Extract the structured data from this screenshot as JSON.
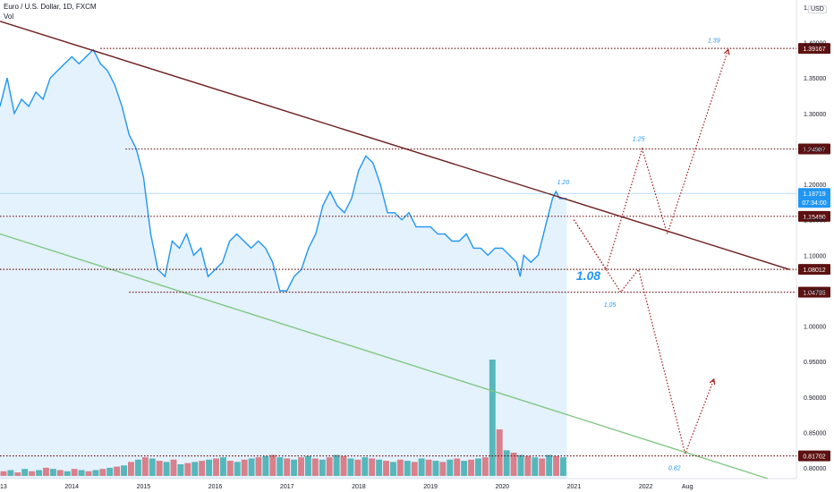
{
  "header": {
    "symbol": "Euro / U.S. Dollar, 1D, FXCM",
    "volume_label": "Vol",
    "currency": "USD"
  },
  "chart_data": {
    "type": "line",
    "title": "Euro / U.S. Dollar, 1D, FXCM",
    "ylim": [
      0.785,
      1.46
    ],
    "xlim": [
      2013.0,
      2024.1
    ],
    "y_ticks": [
      0.8,
      0.85,
      0.9,
      0.95,
      1.0,
      1.05,
      1.1,
      1.15,
      1.2,
      1.25,
      1.3,
      1.35,
      1.4,
      1.45
    ],
    "y_tick_labels": [
      "0.80000",
      "0.85000",
      "0.90000",
      "0.95000",
      "1.00000",
      "1.05000",
      "1.10000",
      "1.15000",
      "1.20000",
      "1.25000",
      "1.30000",
      "1.35000",
      "1.40000",
      "1.45000"
    ],
    "x_ticks": [
      2013,
      2014,
      2015,
      2016,
      2017,
      2018,
      2019,
      2020,
      2021,
      2022,
      2022.58
    ],
    "x_tick_labels": [
      "2013",
      "2014",
      "2015",
      "2016",
      "2017",
      "2018",
      "2019",
      "2020",
      "2021",
      "2022",
      "Aug"
    ],
    "price_series": {
      "color": "#2196f3",
      "x": [
        2013.0,
        2013.1,
        2013.2,
        2013.3,
        2013.4,
        2013.5,
        2013.6,
        2013.7,
        2013.8,
        2013.9,
        2014.0,
        2014.1,
        2014.2,
        2014.3,
        2014.4,
        2014.5,
        2014.6,
        2014.7,
        2014.8,
        2014.9,
        2015.0,
        2015.1,
        2015.2,
        2015.3,
        2015.4,
        2015.5,
        2015.6,
        2015.7,
        2015.8,
        2015.9,
        2016.0,
        2016.1,
        2016.2,
        2016.3,
        2016.4,
        2016.5,
        2016.6,
        2016.7,
        2016.8,
        2016.9,
        2017.0,
        2017.1,
        2017.2,
        2017.3,
        2017.4,
        2017.5,
        2017.6,
        2017.7,
        2017.8,
        2017.9,
        2018.0,
        2018.1,
        2018.2,
        2018.3,
        2018.4,
        2018.5,
        2018.6,
        2018.7,
        2018.8,
        2018.9,
        2019.0,
        2019.1,
        2019.2,
        2019.3,
        2019.4,
        2019.5,
        2019.6,
        2019.7,
        2019.8,
        2019.9,
        2020.0,
        2020.1,
        2020.2,
        2020.25,
        2020.3,
        2020.4,
        2020.5,
        2020.6,
        2020.7,
        2020.75,
        2020.8,
        2020.9
      ],
      "y": [
        1.31,
        1.35,
        1.3,
        1.32,
        1.31,
        1.33,
        1.32,
        1.35,
        1.36,
        1.37,
        1.38,
        1.37,
        1.38,
        1.39,
        1.37,
        1.36,
        1.34,
        1.31,
        1.27,
        1.25,
        1.21,
        1.13,
        1.08,
        1.07,
        1.12,
        1.11,
        1.13,
        1.1,
        1.11,
        1.07,
        1.08,
        1.09,
        1.12,
        1.13,
        1.12,
        1.11,
        1.12,
        1.11,
        1.09,
        1.05,
        1.05,
        1.07,
        1.08,
        1.11,
        1.13,
        1.17,
        1.19,
        1.17,
        1.16,
        1.18,
        1.22,
        1.24,
        1.23,
        1.2,
        1.16,
        1.16,
        1.15,
        1.16,
        1.14,
        1.14,
        1.14,
        1.13,
        1.13,
        1.12,
        1.12,
        1.13,
        1.11,
        1.11,
        1.1,
        1.11,
        1.11,
        1.1,
        1.09,
        1.07,
        1.1,
        1.09,
        1.1,
        1.14,
        1.18,
        1.19,
        1.18,
        1.18
      ]
    },
    "trendlines": [
      {
        "name": "upper-trendline",
        "color": "#6d1b1b",
        "from": [
          2013.0,
          1.43
        ],
        "to": [
          2024.0,
          1.08
        ]
      },
      {
        "name": "lower-trendline",
        "color": "#81c784",
        "from": [
          2013.0,
          1.13
        ],
        "to": [
          2023.7,
          0.785
        ]
      }
    ],
    "horizontal_levels": [
      {
        "name": "level-1-39167",
        "price": 1.39167,
        "label": "1.39167",
        "from_x": 2014.4
      },
      {
        "name": "level-1-24987",
        "price": 1.24987,
        "label": "1.24987",
        "from_x": 2014.75
      },
      {
        "name": "level-1-15490",
        "price": 1.1549,
        "label": "1.15490",
        "from_x": 2013.0
      },
      {
        "name": "level-1-08012",
        "price": 1.08012,
        "label": "1.08012",
        "from_x": 2013.0
      },
      {
        "name": "level-1-04795",
        "price": 1.04795,
        "label": "1.04795",
        "from_x": 2014.8
      },
      {
        "name": "level-0-81702",
        "price": 0.81702,
        "label": "0.81702",
        "from_x": 2013.0
      }
    ],
    "current_price": {
      "value": "1.18719",
      "countdown": "07:34:00",
      "price": 1.18719
    },
    "projections": [
      {
        "name": "projection-path-1",
        "color": "#a31616",
        "points": [
          [
            2021.0,
            1.15
          ],
          [
            2021.45,
            1.08
          ],
          [
            2021.95,
            1.25
          ],
          [
            2022.3,
            1.13
          ],
          [
            2023.15,
            1.39
          ]
        ]
      },
      {
        "name": "projection-path-2",
        "color": "#a31616",
        "points": [
          [
            2021.0,
            1.15
          ],
          [
            2021.65,
            1.048
          ],
          [
            2021.9,
            1.08
          ],
          [
            2022.55,
            0.82
          ],
          [
            2022.95,
            0.925
          ]
        ]
      }
    ],
    "annotations": [
      {
        "name": "annotation-1-39",
        "text": "1.39",
        "x": 2022.95,
        "y": 1.4,
        "size": "small"
      },
      {
        "name": "annotation-1-25",
        "text": "1.25",
        "x": 2021.9,
        "y": 1.261,
        "size": "small"
      },
      {
        "name": "annotation-1-20",
        "text": "1.20",
        "x": 2020.85,
        "y": 1.2,
        "size": "small"
      },
      {
        "name": "annotation-1-08",
        "text": "1.08",
        "x": 2021.2,
        "y": 1.065,
        "size": "large"
      },
      {
        "name": "annotation-1-05",
        "text": "1.05",
        "x": 2021.5,
        "y": 1.027,
        "size": "small"
      },
      {
        "name": "annotation-0-82",
        "text": "0.82",
        "x": 2022.4,
        "y": 0.797,
        "size": "small"
      }
    ],
    "volume": {
      "bars": [
        4,
        5,
        3,
        6,
        4,
        5,
        7,
        6,
        5,
        4,
        6,
        5,
        4,
        5,
        6,
        7,
        8,
        9,
        12,
        14,
        16,
        15,
        13,
        12,
        14,
        10,
        11,
        12,
        13,
        14,
        15,
        16,
        13,
        12,
        14,
        15,
        16,
        17,
        18,
        16,
        15,
        14,
        16,
        17,
        15,
        14,
        16,
        18,
        17,
        15,
        14,
        16,
        15,
        14,
        13,
        12,
        14,
        13,
        12,
        15,
        14,
        13,
        12,
        14,
        15,
        13,
        14,
        15,
        16,
        100,
        40,
        22,
        20,
        18,
        17,
        16,
        15,
        18,
        17,
        16
      ],
      "colors": [
        "#ef5350",
        "#26a69a"
      ]
    }
  }
}
